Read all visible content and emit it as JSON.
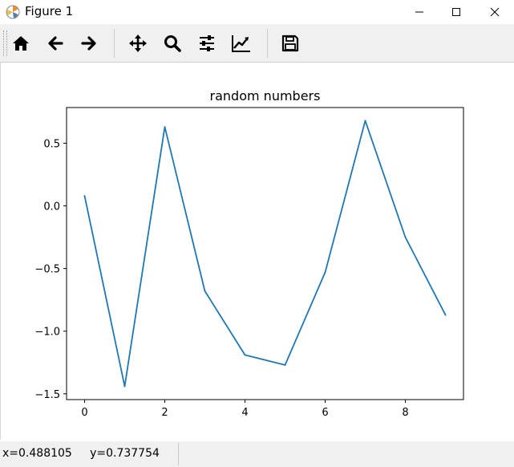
{
  "window": {
    "title": "Figure 1"
  },
  "toolbar": {
    "buttons": [
      {
        "name": "home-button",
        "icon": "home-icon"
      },
      {
        "name": "back-button",
        "icon": "arrow-left-icon"
      },
      {
        "name": "forward-button",
        "icon": "arrow-right-icon"
      },
      {
        "name": "pan-button",
        "icon": "move-icon"
      },
      {
        "name": "zoom-button",
        "icon": "magnifier-icon"
      },
      {
        "name": "configure-subplots-button",
        "icon": "sliders-icon"
      },
      {
        "name": "edit-axis-button",
        "icon": "line-chart-icon"
      },
      {
        "name": "save-button",
        "icon": "floppy-disk-icon"
      }
    ]
  },
  "status": {
    "coords": "x=0.488105     y=0.737754"
  },
  "colors": {
    "line": "#1f77b4",
    "toolbar_bg": "#f0f0f0"
  },
  "chart_data": {
    "type": "line",
    "title": "random numbers",
    "xlabel": "",
    "ylabel": "",
    "x": [
      0,
      1,
      2,
      3,
      4,
      5,
      6,
      7,
      8,
      9
    ],
    "series": [
      {
        "values": [
          0.08,
          -1.44,
          0.63,
          -0.68,
          -1.19,
          -1.27,
          -0.53,
          0.68,
          -0.25,
          -0.87
        ]
      }
    ],
    "xticks": [
      "0",
      "2",
      "4",
      "6",
      "8"
    ],
    "yticks": [
      "0.5",
      "0.0",
      "−0.5",
      "−1.0",
      "−1.5"
    ],
    "xlim": [
      -0.45,
      9.45
    ],
    "ylim": [
      -1.546,
      0.785
    ],
    "grid": false,
    "legend": "none"
  }
}
